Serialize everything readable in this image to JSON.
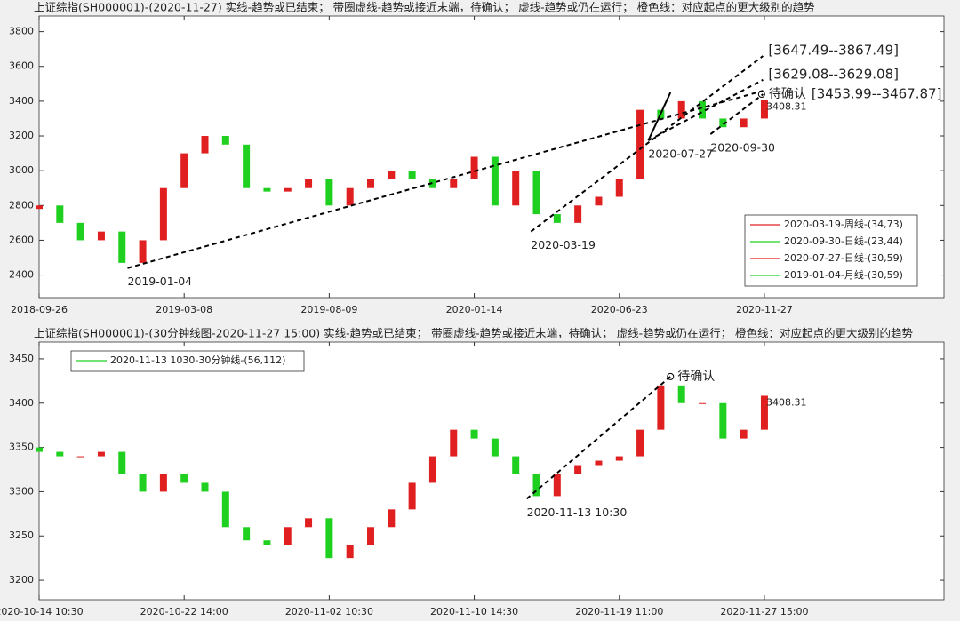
{
  "chart_data": [
    {
      "type": "candlestick",
      "title": "上证综指(SH000001)-(2020-11-27)  实线-趋势或已结束；  带圈虚线-趋势或接近末端，待确认；  虚线-趋势或仍在运行；  橙色线：对应起点的更大级别的趋势",
      "x": [
        0,
        15,
        30,
        45,
        60,
        75,
        90,
        105,
        120,
        135,
        150,
        165,
        180,
        195,
        210,
        225,
        240,
        255,
        270,
        285,
        300,
        315,
        330,
        345,
        360,
        375,
        390,
        405,
        420,
        435,
        450,
        465,
        480,
        495,
        510,
        525
      ],
      "open": [
        2780,
        2800,
        2700,
        2600,
        2650,
        2470,
        2600,
        2900,
        3100,
        3200,
        3150,
        2900,
        2880,
        2900,
        2950,
        2800,
        2900,
        2950,
        3000,
        2950,
        2900,
        2950,
        3080,
        2800,
        3000,
        2750,
        2700,
        2800,
        2850,
        2950,
        3350,
        3300,
        3400,
        3300,
        3250,
        3300
      ],
      "close": [
        2800,
        2700,
        2600,
        2650,
        2470,
        2600,
        2900,
        3100,
        3200,
        3150,
        2900,
        2880,
        2900,
        2950,
        2800,
        2900,
        2950,
        3000,
        2950,
        2900,
        2950,
        3080,
        2800,
        3000,
        2750,
        2700,
        2800,
        2850,
        2950,
        3350,
        3300,
        3400,
        3300,
        3250,
        3300,
        3408.31
      ],
      "up_color": "#e02020",
      "down_color": "#20d020",
      "xlim": [
        0,
        655
      ],
      "xticks": [
        {
          "value": 0,
          "label": "2018-09-26"
        },
        {
          "value": 105,
          "label": "2019-03-08"
        },
        {
          "value": 210,
          "label": "2019-08-09"
        },
        {
          "value": 315,
          "label": "2020-01-14"
        },
        {
          "value": 420,
          "label": "2020-06-23"
        },
        {
          "value": 525,
          "label": "2020-11-27"
        }
      ],
      "ylim": [
        2270,
        3890
      ],
      "yticks": [
        2400,
        2600,
        2800,
        3000,
        3200,
        3400,
        3600,
        3800
      ],
      "trend_lines": [
        {
          "x": [
            64,
            524
          ],
          "y": [
            2440,
            3460
          ],
          "style": "dashed",
          "label": "2019-01-04"
        },
        {
          "x": [
            356,
            524
          ],
          "y": [
            2650,
            3660
          ],
          "style": "dashed",
          "label": "2020-03-19",
          "end_label": "[3647.49--3867.49]"
        },
        {
          "x": [
            441,
            524
          ],
          "y": [
            3174,
            3523
          ],
          "style": "dashed",
          "label": "2020-07-27",
          "end_label": "[3629.08--3629.08]"
        },
        {
          "x": [
            486,
            524
          ],
          "y": [
            3210,
            3440
          ],
          "style": "dashed",
          "label": "2020-09-30"
        },
        {
          "x": [
            441,
            457
          ],
          "y": [
            3174,
            3450
          ],
          "style": "solid"
        }
      ],
      "pending": {
        "x": 523,
        "y": 3440,
        "label": "待确认",
        "range": "[3453.99--3467.87]"
      },
      "last_value": 3408.31,
      "legend_position": "lower right",
      "legend": [
        {
          "name": "2020-03-19-周线-(34,73)",
          "color": "#e02020"
        },
        {
          "name": "2020-09-30-日线-(23,44)",
          "color": "#20d020"
        },
        {
          "name": "2020-07-27-日线-(30,59)",
          "color": "#e02020"
        },
        {
          "name": "2019-01-04-月线-(30,59)",
          "color": "#20d020"
        }
      ]
    },
    {
      "type": "candlestick",
      "title": "上证综指(SH000001)-(30分钟线图-2020-11-27 15:00)  实线-趋势或已结束；  带圈虚线-趋势或接近末端，待确认；  虚线-趋势或仍在运行；  橙色线：对应起点的更大级别的趋势",
      "x": [
        0,
        15,
        30,
        45,
        60,
        75,
        90,
        105,
        120,
        135,
        150,
        165,
        180,
        195,
        210,
        225,
        240,
        255,
        270,
        285,
        300,
        315,
        330,
        345,
        360,
        375,
        390,
        405,
        420,
        435,
        450,
        465,
        480,
        495,
        510,
        525
      ],
      "open": [
        3350,
        3345,
        3340,
        3340,
        3345,
        3320,
        3300,
        3320,
        3310,
        3300,
        3260,
        3245,
        3240,
        3260,
        3270,
        3225,
        3240,
        3260,
        3280,
        3310,
        3340,
        3370,
        3360,
        3340,
        3320,
        3295,
        3320,
        3330,
        3335,
        3340,
        3370,
        3420,
        3400,
        3400,
        3360,
        3370
      ],
      "close": [
        3345,
        3340,
        3340,
        3345,
        3320,
        3300,
        3320,
        3310,
        3300,
        3260,
        3245,
        3240,
        3260,
        3270,
        3225,
        3240,
        3260,
        3280,
        3310,
        3340,
        3370,
        3360,
        3340,
        3320,
        3295,
        3320,
        3330,
        3335,
        3340,
        3370,
        3420,
        3400,
        3400,
        3360,
        3370,
        3408.31
      ],
      "up_color": "#e02020",
      "down_color": "#20d020",
      "xlim": [
        0,
        655
      ],
      "xticks": [
        {
          "value": 0,
          "label": "2020-10-14 10:30"
        },
        {
          "value": 105,
          "label": "2020-10-22 14:00"
        },
        {
          "value": 210,
          "label": "2020-11-02 10:30"
        },
        {
          "value": 315,
          "label": "2020-11-10 14:30"
        },
        {
          "value": 420,
          "label": "2020-11-19 11:00"
        },
        {
          "value": 525,
          "label": "2020-11-27 15:00"
        }
      ],
      "ylim": [
        3178,
        3469
      ],
      "yticks": [
        3200,
        3250,
        3300,
        3350,
        3400,
        3450
      ],
      "trend_lines": [
        {
          "x": [
            353,
            457
          ],
          "y": [
            3292,
            3430
          ],
          "style": "dashed",
          "label": "2020-11-13 10:30"
        }
      ],
      "pending": {
        "x": 457,
        "y": 3430,
        "label": "待确认"
      },
      "last_value": 3408.31,
      "legend_position": "upper left",
      "legend": [
        {
          "name": "2020-11-13 1030-30分钟线-(56,112)",
          "color": "#20d020"
        }
      ]
    }
  ]
}
